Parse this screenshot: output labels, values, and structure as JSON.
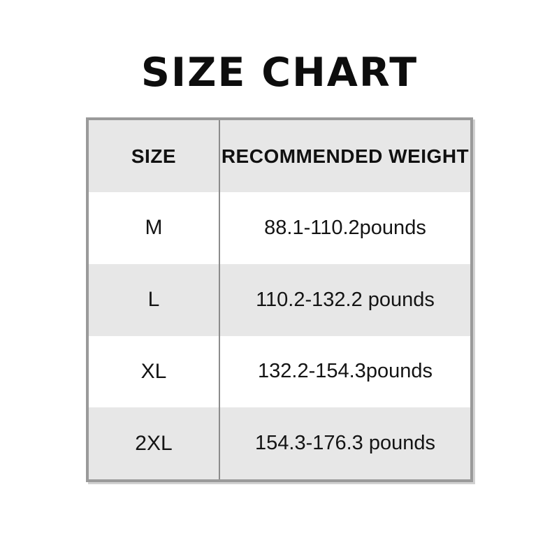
{
  "page": {
    "title": "SIZE CHART"
  },
  "table": {
    "headers": {
      "size": "SIZE",
      "weight": "RECOMMENDED WEIGHT"
    },
    "rows": [
      {
        "size": "M",
        "weight": "88.1-110.2pounds"
      },
      {
        "size": "L",
        "weight": "110.2-132.2 pounds"
      },
      {
        "size": "XL",
        "weight": "132.2-154.3pounds"
      },
      {
        "size": "2XL",
        "weight": "154.3-176.3 pounds"
      }
    ]
  },
  "colors": {
    "row_alt_background": "#e7e7e7",
    "table_border": "#9a9a9a",
    "column_divider": "#8c8c8c",
    "text": "#141414",
    "background": "#ffffff"
  },
  "chart_data": {
    "type": "table",
    "title": "SIZE CHART",
    "columns": [
      "SIZE",
      "RECOMMENDED WEIGHT"
    ],
    "rows": [
      [
        "M",
        "88.1-110.2pounds"
      ],
      [
        "L",
        "110.2-132.2 pounds"
      ],
      [
        "XL",
        "132.2-154.3pounds"
      ],
      [
        "2XL",
        "154.3-176.3 pounds"
      ]
    ],
    "units": "pounds",
    "layout": {
      "header_background": "#e7e7e7",
      "alternating_rows": true,
      "row_striping_order": [
        "white",
        "gray",
        "white",
        "gray"
      ]
    }
  }
}
